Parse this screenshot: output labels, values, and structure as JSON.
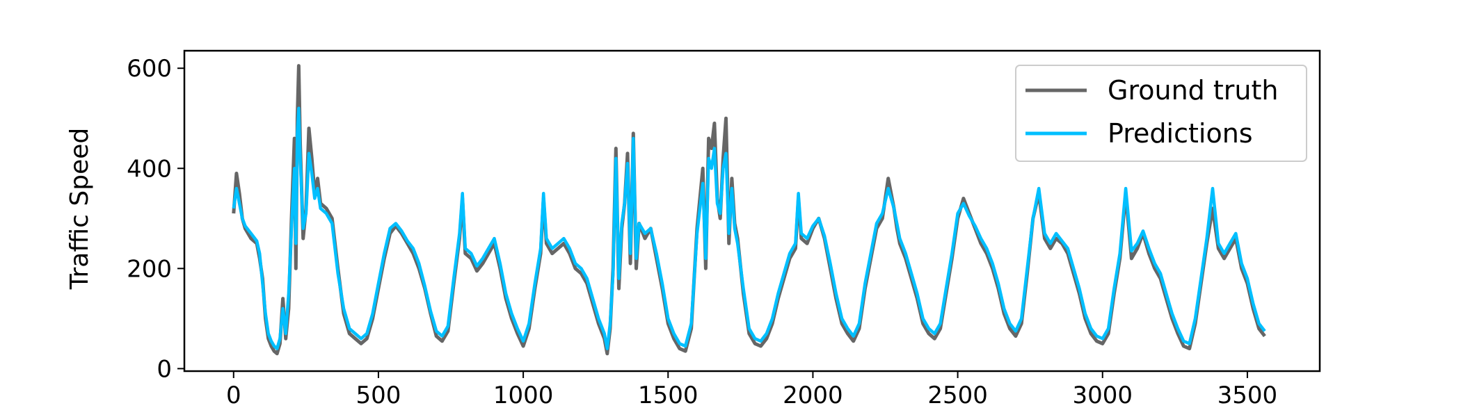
{
  "chart_data": {
    "type": "line",
    "title": "",
    "xlabel": "",
    "ylabel": "Traffic Speed",
    "xlim": [
      -170,
      3750
    ],
    "ylim": [
      -5,
      635
    ],
    "x_ticks": [
      0,
      500,
      1000,
      1500,
      2000,
      2500,
      3000,
      3500
    ],
    "y_ticks": [
      0,
      200,
      400,
      600
    ],
    "grid": false,
    "legend_position": "top-right",
    "series": [
      {
        "name": "Ground truth",
        "color": "#666666",
        "x": [
          0,
          10,
          20,
          30,
          40,
          60,
          80,
          90,
          100,
          110,
          120,
          130,
          140,
          150,
          160,
          170,
          180,
          190,
          200,
          210,
          215,
          220,
          225,
          230,
          240,
          250,
          260,
          270,
          280,
          290,
          300,
          320,
          340,
          360,
          380,
          400,
          420,
          440,
          460,
          480,
          500,
          520,
          540,
          560,
          580,
          600,
          620,
          640,
          660,
          680,
          700,
          720,
          740,
          760,
          780,
          790,
          800,
          820,
          840,
          860,
          880,
          900,
          920,
          940,
          960,
          980,
          1000,
          1020,
          1040,
          1060,
          1070,
          1080,
          1100,
          1120,
          1140,
          1160,
          1180,
          1200,
          1220,
          1240,
          1260,
          1280,
          1290,
          1300,
          1310,
          1320,
          1330,
          1340,
          1350,
          1360,
          1370,
          1380,
          1390,
          1400,
          1420,
          1440,
          1460,
          1480,
          1500,
          1520,
          1540,
          1560,
          1580,
          1600,
          1620,
          1630,
          1640,
          1650,
          1660,
          1670,
          1680,
          1690,
          1700,
          1710,
          1720,
          1730,
          1740,
          1760,
          1780,
          1800,
          1820,
          1840,
          1860,
          1880,
          1900,
          1920,
          1940,
          1950,
          1960,
          1980,
          2000,
          2020,
          2040,
          2060,
          2080,
          2100,
          2120,
          2140,
          2160,
          2180,
          2200,
          2220,
          2240,
          2260,
          2280,
          2290,
          2300,
          2320,
          2340,
          2360,
          2380,
          2400,
          2420,
          2440,
          2460,
          2480,
          2500,
          2520,
          2540,
          2560,
          2580,
          2600,
          2620,
          2640,
          2660,
          2680,
          2700,
          2720,
          2740,
          2760,
          2780,
          2800,
          2820,
          2840,
          2860,
          2880,
          2900,
          2920,
          2940,
          2960,
          2980,
          3000,
          3020,
          3040,
          3060,
          3080,
          3100,
          3120,
          3140,
          3160,
          3180,
          3200,
          3220,
          3240,
          3260,
          3280,
          3300,
          3320,
          3340,
          3360,
          3380,
          3400,
          3420,
          3440,
          3460,
          3480,
          3500,
          3520,
          3540,
          3560
        ],
        "values": [
          310,
          390,
          350,
          300,
          280,
          260,
          250,
          220,
          180,
          100,
          60,
          45,
          35,
          30,
          50,
          140,
          60,
          120,
          300,
          460,
          200,
          500,
          605,
          450,
          260,
          320,
          480,
          420,
          350,
          380,
          330,
          320,
          300,
          200,
          110,
          70,
          60,
          50,
          60,
          100,
          160,
          220,
          270,
          285,
          270,
          250,
          230,
          200,
          160,
          110,
          65,
          55,
          75,
          170,
          260,
          340,
          230,
          220,
          195,
          210,
          230,
          250,
          200,
          140,
          100,
          70,
          45,
          80,
          160,
          230,
          340,
          250,
          230,
          240,
          250,
          230,
          200,
          190,
          170,
          130,
          90,
          60,
          30,
          80,
          200,
          440,
          160,
          280,
          330,
          430,
          210,
          470,
          200,
          290,
          260,
          280,
          220,
          160,
          90,
          60,
          40,
          35,
          80,
          280,
          400,
          200,
          460,
          440,
          490,
          340,
          300,
          420,
          500,
          250,
          380,
          290,
          260,
          150,
          70,
          50,
          45,
          60,
          90,
          140,
          180,
          220,
          240,
          340,
          260,
          250,
          280,
          300,
          260,
          200,
          140,
          90,
          70,
          55,
          80,
          160,
          220,
          280,
          300,
          380,
          320,
          280,
          250,
          220,
          180,
          140,
          90,
          70,
          60,
          80,
          150,
          220,
          300,
          340,
          310,
          280,
          250,
          230,
          200,
          160,
          110,
          80,
          65,
          90,
          190,
          300,
          350,
          260,
          240,
          260,
          250,
          230,
          190,
          150,
          100,
          70,
          55,
          50,
          70,
          150,
          220,
          350,
          220,
          240,
          270,
          230,
          200,
          180,
          140,
          100,
          70,
          45,
          40,
          90,
          170,
          250,
          320,
          240,
          220,
          240,
          260,
          200,
          170,
          120,
          80,
          65
        ]
      },
      {
        "name": "Predictions",
        "color": "#00bfff",
        "x": [
          0,
          10,
          20,
          30,
          40,
          60,
          80,
          90,
          100,
          110,
          120,
          130,
          140,
          150,
          160,
          170,
          180,
          190,
          200,
          210,
          215,
          220,
          225,
          230,
          240,
          250,
          260,
          270,
          280,
          290,
          300,
          320,
          340,
          360,
          380,
          400,
          420,
          440,
          460,
          480,
          500,
          520,
          540,
          560,
          580,
          600,
          620,
          640,
          660,
          680,
          700,
          720,
          740,
          760,
          780,
          790,
          800,
          820,
          840,
          860,
          880,
          900,
          920,
          940,
          960,
          980,
          1000,
          1020,
          1040,
          1060,
          1070,
          1080,
          1100,
          1120,
          1140,
          1160,
          1180,
          1200,
          1220,
          1240,
          1260,
          1280,
          1290,
          1300,
          1310,
          1320,
          1330,
          1340,
          1350,
          1360,
          1370,
          1380,
          1390,
          1400,
          1420,
          1440,
          1460,
          1480,
          1500,
          1520,
          1540,
          1560,
          1580,
          1600,
          1620,
          1630,
          1640,
          1650,
          1660,
          1670,
          1680,
          1690,
          1700,
          1710,
          1720,
          1730,
          1740,
          1760,
          1780,
          1800,
          1820,
          1840,
          1860,
          1880,
          1900,
          1920,
          1940,
          1950,
          1960,
          1980,
          2000,
          2020,
          2040,
          2060,
          2080,
          2100,
          2120,
          2140,
          2160,
          2180,
          2200,
          2220,
          2240,
          2260,
          2280,
          2290,
          2300,
          2320,
          2340,
          2360,
          2380,
          2400,
          2420,
          2440,
          2460,
          2480,
          2500,
          2520,
          2540,
          2560,
          2580,
          2600,
          2620,
          2640,
          2660,
          2680,
          2700,
          2720,
          2740,
          2760,
          2780,
          2800,
          2820,
          2840,
          2860,
          2880,
          2900,
          2920,
          2940,
          2960,
          2980,
          3000,
          3020,
          3040,
          3060,
          3080,
          3100,
          3120,
          3140,
          3160,
          3180,
          3200,
          3220,
          3240,
          3260,
          3280,
          3300,
          3320,
          3340,
          3360,
          3380,
          3400,
          3420,
          3440,
          3460,
          3480,
          3500,
          3520,
          3540,
          3560
        ],
        "values": [
          320,
          360,
          330,
          300,
          285,
          270,
          255,
          230,
          170,
          110,
          70,
          55,
          45,
          40,
          60,
          120,
          70,
          150,
          280,
          400,
          250,
          470,
          520,
          420,
          280,
          310,
          430,
          390,
          340,
          360,
          320,
          310,
          290,
          190,
          120,
          80,
          70,
          60,
          70,
          110,
          170,
          230,
          280,
          290,
          275,
          255,
          240,
          210,
          165,
          115,
          75,
          65,
          85,
          180,
          270,
          350,
          240,
          230,
          205,
          220,
          240,
          260,
          210,
          150,
          110,
          80,
          55,
          90,
          170,
          240,
          350,
          260,
          240,
          250,
          260,
          240,
          210,
          200,
          180,
          140,
          100,
          70,
          40,
          90,
          190,
          420,
          180,
          290,
          330,
          410,
          230,
          460,
          220,
          290,
          270,
          280,
          230,
          170,
          100,
          70,
          50,
          45,
          90,
          270,
          370,
          220,
          420,
          400,
          440,
          330,
          310,
          400,
          430,
          270,
          360,
          280,
          250,
          160,
          80,
          60,
          55,
          70,
          100,
          150,
          190,
          230,
          250,
          350,
          270,
          260,
          285,
          300,
          265,
          210,
          150,
          100,
          80,
          65,
          90,
          170,
          230,
          290,
          310,
          360,
          320,
          290,
          260,
          230,
          190,
          150,
          100,
          80,
          70,
          90,
          160,
          230,
          310,
          330,
          305,
          285,
          260,
          240,
          210,
          170,
          120,
          90,
          75,
          100,
          200,
          300,
          360,
          270,
          250,
          270,
          255,
          240,
          200,
          160,
          110,
          80,
          65,
          60,
          80,
          160,
          230,
          360,
          235,
          250,
          275,
          240,
          210,
          190,
          150,
          110,
          80,
          55,
          50,
          100,
          180,
          260,
          360,
          250,
          230,
          250,
          270,
          210,
          180,
          130,
          90,
          75
        ]
      }
    ]
  }
}
